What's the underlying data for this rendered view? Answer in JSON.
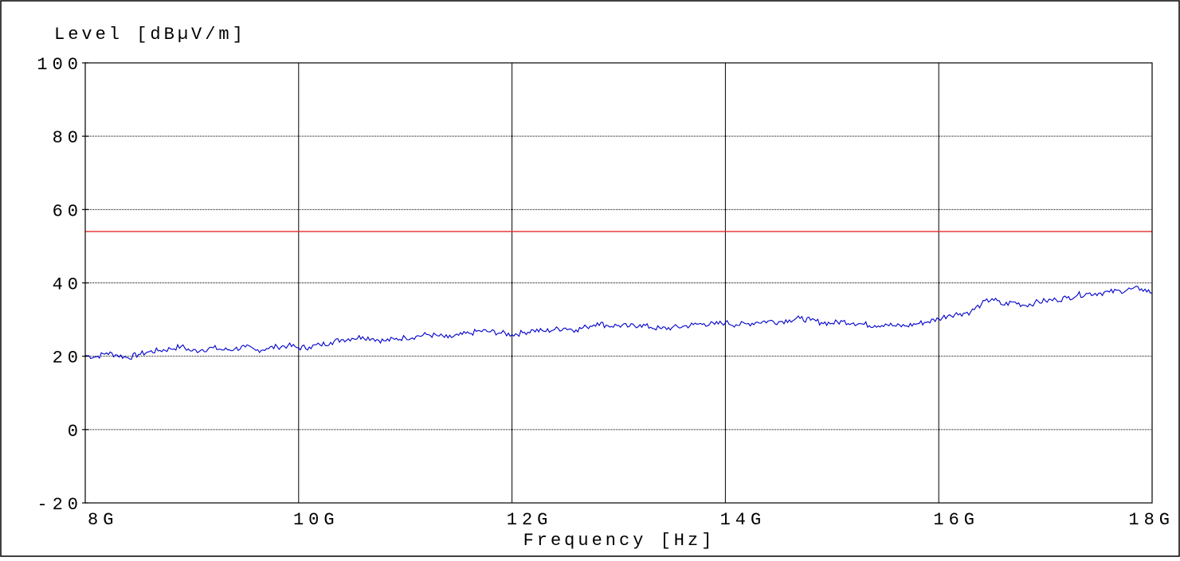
{
  "chart_data": {
    "type": "line",
    "ylabel": "Level   [dBµV/m]",
    "xlabel": "Frequency  [Hz]",
    "xlim": [
      8,
      18
    ],
    "ylim": [
      -20,
      100
    ],
    "x_unit": "GHz",
    "grid": true,
    "x_ticks": [
      {
        "value": 8,
        "label": "8G"
      },
      {
        "value": 10,
        "label": "10G"
      },
      {
        "value": 12,
        "label": "12G"
      },
      {
        "value": 14,
        "label": "14G"
      },
      {
        "value": 16,
        "label": "16G"
      },
      {
        "value": 18,
        "label": "18G"
      }
    ],
    "y_ticks": [
      {
        "value": 100,
        "label": "100"
      },
      {
        "value": 80,
        "label": "80"
      },
      {
        "value": 60,
        "label": "60"
      },
      {
        "value": 40,
        "label": "40"
      },
      {
        "value": 20,
        "label": "20"
      },
      {
        "value": 0,
        "label": "0"
      },
      {
        "value": -20,
        "label": "-20"
      }
    ],
    "limit_line": {
      "value": 54,
      "color": "#e8292b"
    },
    "series": [
      {
        "color": "#0000cc",
        "x": [
          8.0,
          8.1,
          8.2,
          8.3,
          8.4,
          8.5,
          8.6,
          8.7,
          8.8,
          8.9,
          9.0,
          9.1,
          9.2,
          9.3,
          9.4,
          9.5,
          9.6,
          9.7,
          9.8,
          9.9,
          10.0,
          10.1,
          10.2,
          10.3,
          10.4,
          10.5,
          10.6,
          10.7,
          10.8,
          10.9,
          11.0,
          11.1,
          11.2,
          11.3,
          11.4,
          11.5,
          11.6,
          11.7,
          11.8,
          11.9,
          12.0,
          12.1,
          12.2,
          12.3,
          12.4,
          12.5,
          12.6,
          12.7,
          12.8,
          12.9,
          13.0,
          13.1,
          13.2,
          13.3,
          13.4,
          13.5,
          13.6,
          13.7,
          13.8,
          13.9,
          14.0,
          14.1,
          14.2,
          14.3,
          14.4,
          14.5,
          14.6,
          14.7,
          14.8,
          14.9,
          15.0,
          15.1,
          15.2,
          15.3,
          15.4,
          15.5,
          15.6,
          15.7,
          15.8,
          15.9,
          16.0,
          16.1,
          16.2,
          16.3,
          16.4,
          16.5,
          16.6,
          16.7,
          16.8,
          16.9,
          17.0,
          17.1,
          17.2,
          17.3,
          17.4,
          17.5,
          17.6,
          17.7,
          17.8,
          17.9,
          18.0
        ],
        "y": [
          20.2,
          19.8,
          20.9,
          20.3,
          19.6,
          20.5,
          21.2,
          21.6,
          22.0,
          22.7,
          21.4,
          21.8,
          22.3,
          21.7,
          22.0,
          22.5,
          21.6,
          22.1,
          22.6,
          22.9,
          22.3,
          22.5,
          23.1,
          23.8,
          24.5,
          24.9,
          25.3,
          24.8,
          24.2,
          24.6,
          25.1,
          25.4,
          25.9,
          25.6,
          25.0,
          25.7,
          26.2,
          26.9,
          26.7,
          26.3,
          25.9,
          26.4,
          27.1,
          26.8,
          27.3,
          27.7,
          27.2,
          28.0,
          29.1,
          28.3,
          28.4,
          28.1,
          28.6,
          27.9,
          27.5,
          27.8,
          28.1,
          28.6,
          28.9,
          28.7,
          29.2,
          28.6,
          28.8,
          29.3,
          29.6,
          29.4,
          29.9,
          30.3,
          29.8,
          29.2,
          29.0,
          29.5,
          29.1,
          28.7,
          28.4,
          28.8,
          28.2,
          28.3,
          28.9,
          29.4,
          30.2,
          31.3,
          31.6,
          32.1,
          34.2,
          35.7,
          34.0,
          34.8,
          33.9,
          34.6,
          35.1,
          35.4,
          35.9,
          36.7,
          37.1,
          37.2,
          37.5,
          37.8,
          38.3,
          38.4,
          37.3
        ]
      }
    ]
  }
}
